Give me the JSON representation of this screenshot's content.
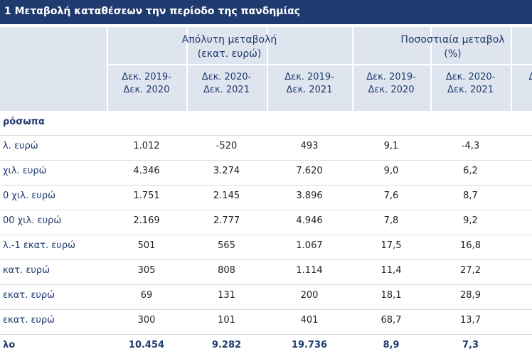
{
  "title": "1 Μεταβολή καταθέσεων την περίοδο της πανδημίας",
  "header": {
    "groups": [
      [
        "Απόλυτη μεταβολή",
        "(εκατ. ευρώ)"
      ],
      [
        "Ποσοστιαία μεταβολ",
        "(%)"
      ]
    ],
    "columns": [
      "Δεκ. 2019-Δεκ. 2020",
      "Δεκ. 2020-Δεκ. 2021",
      "Δεκ. 2019-Δεκ. 2021",
      "Δεκ. 2019-Δεκ. 2020",
      "Δεκ. 2020-Δεκ. 2021",
      "Δ"
    ]
  },
  "table": {
    "section": "ρόσωπα",
    "rows": [
      [
        "λ. ευρώ",
        "1.012",
        "-520",
        "493",
        "9,1",
        "-4,3"
      ],
      [
        "χιλ. ευρώ",
        "4.346",
        "3.274",
        "7.620",
        "9,0",
        "6,2"
      ],
      [
        "0 χιλ. ευρώ",
        "1.751",
        "2.145",
        "3.896",
        "7,6",
        "8,7"
      ],
      [
        "00 χιλ. ευρώ",
        "2.169",
        "2.777",
        "4.946",
        "7,8",
        "9,2"
      ],
      [
        "λ.-1 εκατ. ευρώ",
        "501",
        "565",
        "1.067",
        "17,5",
        "16,8"
      ],
      [
        "κατ. ευρώ",
        "305",
        "808",
        "1.114",
        "11,4",
        "27,2"
      ],
      [
        "εκατ. ευρώ",
        "69",
        "131",
        "200",
        "18,1",
        "28,9"
      ],
      [
        "εκατ. ευρώ",
        "300",
        "101",
        "401",
        "68,7",
        "13,7"
      ],
      [
        "λο",
        "10.454",
        "9.282",
        "19.736",
        "8,9",
        "7,3"
      ]
    ]
  }
}
